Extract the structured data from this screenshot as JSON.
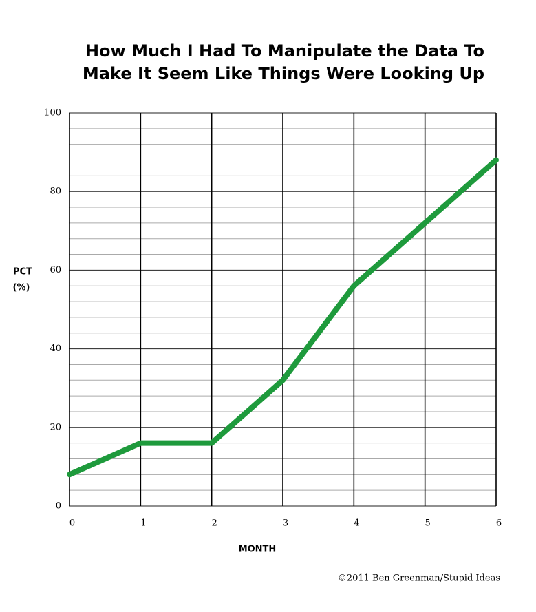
{
  "chart_data": {
    "type": "line",
    "title": [
      "How Much I Had To Manipulate the Data To",
      "Make It Seem Like Things Were Looking Up"
    ],
    "xlabel": "MONTH",
    "ylabel": [
      "PCT",
      "(%)"
    ],
    "x": [
      0,
      1,
      2,
      3,
      4,
      5,
      6
    ],
    "series": [
      {
        "name": "PCT",
        "color": "#1e9a3c",
        "values": [
          8,
          16,
          16,
          32,
          56,
          72,
          88
        ]
      }
    ],
    "xlim": [
      0,
      6
    ],
    "xticks": [
      0,
      1,
      2,
      3,
      4,
      5,
      6
    ],
    "ylim": [
      0,
      100
    ],
    "yticks": [
      0,
      20,
      40,
      60,
      80,
      100
    ],
    "minor_yticks": [
      4,
      8,
      12,
      16,
      24,
      28,
      32,
      36,
      44,
      48,
      52,
      56,
      64,
      68,
      72,
      76,
      84,
      88,
      92,
      96
    ],
    "grid": true,
    "credit": "©2011 Ben Greenman/Stupid Ideas"
  }
}
